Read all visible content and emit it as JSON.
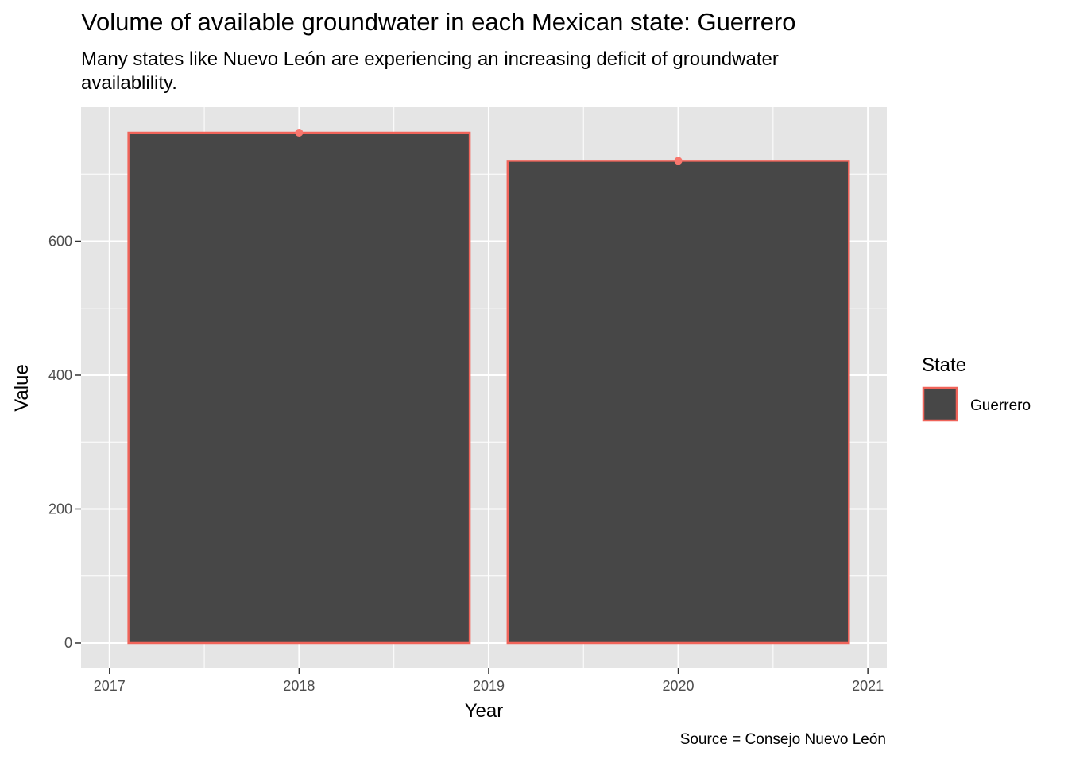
{
  "title": "Volume of available groundwater in each Mexican state: Guerrero",
  "subtitle": "Many states like Nuevo León are experiencing an increasing deficit of groundwater availablility.",
  "caption": "Source = Consejo Nuevo León",
  "colors": {
    "panel": "#e5e5e5",
    "grid": "#ffffff",
    "bar_fill": "#474747",
    "bar_outline": "#f0645a",
    "point": "#f8766d"
  },
  "chart_data": {
    "type": "bar",
    "xlabel": "Year",
    "ylabel": "Value",
    "x": [
      2018,
      2020
    ],
    "values": [
      762,
      720
    ],
    "bar_width_years": 1.8,
    "xlim": [
      2016.85,
      2021.1
    ],
    "ylim": [
      -38,
      800
    ],
    "x_ticks": [
      2017,
      2018,
      2019,
      2020,
      2021
    ],
    "y_ticks": [
      0,
      200,
      400,
      600
    ],
    "grid": true,
    "legend": {
      "title": "State",
      "entries": [
        "Guerrero"
      ],
      "position": "right"
    }
  }
}
